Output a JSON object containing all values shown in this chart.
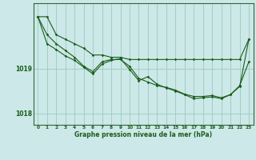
{
  "title": "Graphe pression niveau de la mer (hPa)",
  "bg_color": "#cce8e8",
  "grid_color": "#99ccbb",
  "line_color": "#1a5c1a",
  "x_ticks": [
    0,
    1,
    2,
    3,
    4,
    5,
    6,
    7,
    8,
    9,
    10,
    11,
    12,
    13,
    14,
    15,
    16,
    17,
    18,
    19,
    20,
    21,
    22,
    23
  ],
  "ylim": [
    1017.75,
    1020.45
  ],
  "yticks": [
    1018,
    1019
  ],
  "series1": [
    1020.15,
    1020.15,
    1019.75,
    1019.65,
    1019.55,
    1019.45,
    1019.3,
    1019.3,
    1019.25,
    1019.25,
    1019.2,
    1019.2,
    1019.2,
    1019.2,
    1019.2,
    1019.2,
    1019.2,
    1019.2,
    1019.2,
    1019.2,
    1019.2,
    1019.2,
    1019.2,
    1019.65
  ],
  "series2": [
    1020.15,
    1019.75,
    1019.55,
    1019.4,
    1019.25,
    1019.05,
    1018.93,
    1019.15,
    1019.2,
    1019.2,
    1019.05,
    1018.78,
    1018.7,
    1018.62,
    1018.58,
    1018.52,
    1018.43,
    1018.38,
    1018.38,
    1018.4,
    1018.35,
    1018.42,
    1018.62,
    1019.15
  ],
  "series3": [
    1020.15,
    1019.55,
    1019.42,
    1019.28,
    1019.18,
    1019.03,
    1018.88,
    1019.1,
    1019.18,
    1019.22,
    1018.98,
    1018.73,
    1018.82,
    1018.65,
    1018.57,
    1018.5,
    1018.42,
    1018.33,
    1018.35,
    1018.37,
    1018.33,
    1018.42,
    1018.6,
    1019.65
  ]
}
